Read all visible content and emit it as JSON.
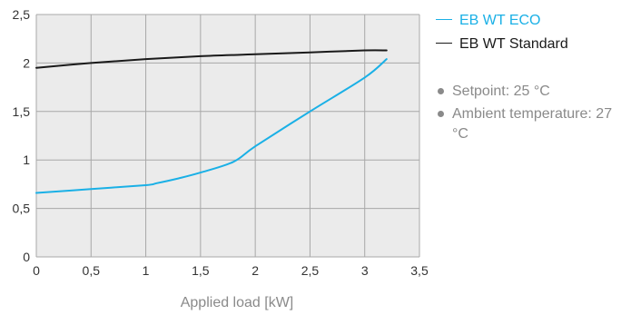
{
  "colors": {
    "eco": "#1ab0e6",
    "standard": "#1a1a1a",
    "plot_bg": "#ebebeb",
    "grid": "#a8a8a8",
    "note_text": "#8a8a8a"
  },
  "legend": {
    "items": [
      {
        "label": "EB WT ECO",
        "color": "#1ab0e6"
      },
      {
        "label": "EB WT Standard",
        "color": "#1a1a1a"
      }
    ]
  },
  "notes": [
    {
      "text": "Setpoint: 25 °C"
    },
    {
      "text": "Ambient temperature: 27 °C"
    }
  ],
  "chart_data": {
    "type": "line",
    "title": "",
    "xlabel": "Applied load [kW]",
    "ylabel": "",
    "xlim": [
      0,
      3.5
    ],
    "ylim": [
      0,
      2.5
    ],
    "x_ticks": [
      {
        "value": 0,
        "label": "0"
      },
      {
        "value": 0.5,
        "label": "0,5"
      },
      {
        "value": 1,
        "label": "1"
      },
      {
        "value": 1.5,
        "label": "1,5"
      },
      {
        "value": 2,
        "label": "2"
      },
      {
        "value": 2.5,
        "label": "2,5"
      },
      {
        "value": 3,
        "label": "3"
      },
      {
        "value": 3.5,
        "label": "3,5"
      }
    ],
    "y_ticks": [
      {
        "value": 0,
        "label": "0"
      },
      {
        "value": 0.5,
        "label": "0,5"
      },
      {
        "value": 1,
        "label": "1"
      },
      {
        "value": 1.5,
        "label": "1,5"
      },
      {
        "value": 2,
        "label": "2"
      },
      {
        "value": 2.5,
        "label": "2,5"
      }
    ],
    "grid": true,
    "legend_position": "right",
    "series": [
      {
        "name": "EB WT ECO",
        "color": "#1ab0e6",
        "points": [
          [
            0,
            0.66
          ],
          [
            0.5,
            0.7
          ],
          [
            1.0,
            0.74
          ],
          [
            1.1,
            0.76
          ],
          [
            1.3,
            0.81
          ],
          [
            1.5,
            0.87
          ],
          [
            1.8,
            0.98
          ],
          [
            2.0,
            1.14
          ],
          [
            2.5,
            1.5
          ],
          [
            3.0,
            1.85
          ],
          [
            3.2,
            2.04
          ]
        ]
      },
      {
        "name": "EB WT Standard",
        "color": "#1a1a1a",
        "points": [
          [
            0,
            1.95
          ],
          [
            0.5,
            2.0
          ],
          [
            1.0,
            2.04
          ],
          [
            1.5,
            2.07
          ],
          [
            2.0,
            2.09
          ],
          [
            2.5,
            2.11
          ],
          [
            3.0,
            2.13
          ],
          [
            3.2,
            2.13
          ]
        ]
      }
    ]
  }
}
